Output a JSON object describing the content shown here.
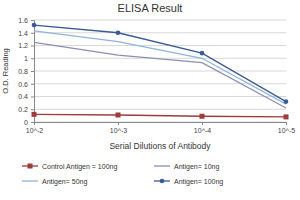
{
  "chart_data": {
    "type": "line",
    "title": "ELISA Result",
    "x_label": "Serial Dilutions of Antibody",
    "y_label": "O.D. Reading",
    "categories": [
      "10^-2",
      "10^-3",
      "10^-4",
      "10^-5"
    ],
    "series": [
      {
        "name": "Control Antigen = 100ng",
        "color": "#9e3b3b",
        "marker": "square",
        "values": [
          0.12,
          0.11,
          0.09,
          0.08
        ]
      },
      {
        "name": "Antigen= 10ng",
        "color": "#8c8fb5",
        "marker": "none",
        "values": [
          1.25,
          1.05,
          0.93,
          0.22
        ]
      },
      {
        "name": "Antigen= 50ng",
        "color": "#8fb4da",
        "marker": "none",
        "values": [
          1.43,
          1.26,
          1.0,
          0.28
        ]
      },
      {
        "name": "Antigen= 100ng",
        "color": "#3b5998",
        "marker": "circle",
        "values": [
          1.52,
          1.4,
          1.08,
          0.32
        ]
      }
    ],
    "ylim": [
      0,
      1.6
    ],
    "yticks": [
      0,
      0.2,
      0.4,
      0.6,
      0.8,
      1,
      1.2,
      1.4,
      1.6
    ],
    "grid": true,
    "legend": "bottom"
  }
}
